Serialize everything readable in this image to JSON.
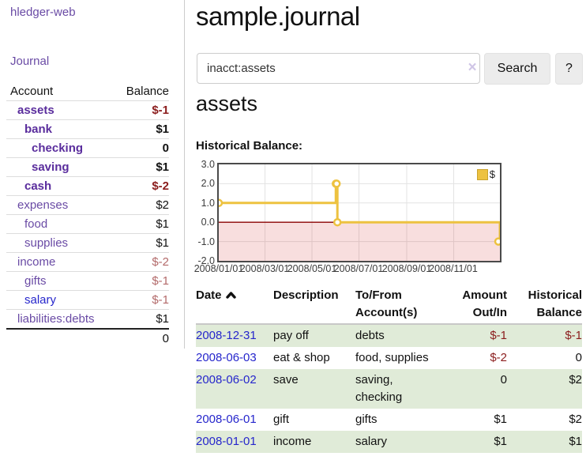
{
  "app": {
    "brand": "hledger-web"
  },
  "sidebar": {
    "journal_label": "Journal",
    "accounts": {
      "headers": {
        "account": "Account",
        "balance": "Balance"
      },
      "rows": [
        {
          "name": "assets",
          "balance": "$-1"
        },
        {
          "name": "bank",
          "balance": "$1"
        },
        {
          "name": "checking",
          "balance": "0"
        },
        {
          "name": "saving",
          "balance": "$1"
        },
        {
          "name": "cash",
          "balance": "$-2"
        },
        {
          "name": "expenses",
          "balance": "$2"
        },
        {
          "name": "food",
          "balance": "$1"
        },
        {
          "name": "supplies",
          "balance": "$1"
        },
        {
          "name": "income",
          "balance": "$-2"
        },
        {
          "name": "gifts",
          "balance": "$-1"
        },
        {
          "name": "salary",
          "balance": "$-1"
        },
        {
          "name": "liabilities:debts",
          "balance": "$1"
        }
      ],
      "total": "0"
    }
  },
  "main": {
    "title": "sample.journal",
    "search": {
      "value": "inacct:assets",
      "clear_icon": "×",
      "button_label": "Search",
      "help_label": "?"
    },
    "account_heading": "assets",
    "chart_label": "Historical Balance:"
  },
  "chart_data": {
    "type": "line",
    "title": "Historical Balance:",
    "step": true,
    "series": [
      {
        "name": "$",
        "points": [
          [
            "2008-01-01",
            1
          ],
          [
            "2008-06-01",
            2
          ],
          [
            "2008-06-02",
            2
          ],
          [
            "2008-06-03",
            0
          ],
          [
            "2008-12-31",
            -1
          ]
        ]
      }
    ],
    "xrange": [
      "2008-01-01",
      "2008-12-31"
    ],
    "ylim": [
      -2,
      3
    ],
    "yticks": [
      3,
      2,
      1,
      0,
      -1,
      -2
    ],
    "ytick_labels": [
      "3.0",
      "2.0",
      "1.0",
      "0.0",
      "-1.0",
      "-2.0"
    ],
    "xticks": [
      "2008/01/01",
      "2008/03/01",
      "2008/05/01",
      "2008/07/01",
      "2008/09/01",
      "2008/11/01"
    ],
    "legend": {
      "position": "top-right",
      "label": "$",
      "color": "#EDC240"
    },
    "grid": true
  },
  "register": {
    "headers": {
      "date": "Date",
      "description": "Description",
      "account": "To/From Account(s)",
      "amount": "Amount Out/In",
      "balance": "Historical Balance"
    },
    "sort": {
      "column": "date",
      "direction": "ascending"
    },
    "rows": [
      {
        "date": "2008-12-31",
        "description": "pay off",
        "accounts": "debts",
        "amount": "$-1",
        "balance": "$-1"
      },
      {
        "date": "2008-06-03",
        "description": "eat & shop",
        "accounts": "food, supplies",
        "amount": "$-2",
        "balance": "0"
      },
      {
        "date": "2008-06-02",
        "description": "save",
        "accounts": "saving, checking",
        "amount": "0",
        "balance": "$2"
      },
      {
        "date": "2008-06-01",
        "description": "gift",
        "accounts": "gifts",
        "amount": "$1",
        "balance": "$2"
      },
      {
        "date": "2008-01-01",
        "description": "income",
        "accounts": "salary",
        "amount": "$1",
        "balance": "$1"
      }
    ]
  },
  "colors": {
    "link_purple": "#6a4ba5",
    "link_purple_bold": "#5a2d9d",
    "link_blue": "#2626cc",
    "negative_strong": "#8b1d1d",
    "negative_soft": "#b36a6a",
    "row_stripe_green": "#e0ebd8",
    "series_gold": "#EDC240",
    "chart_negative_fill": "#f8d6d6",
    "chart_zero_line": "#8b0000"
  },
  "icons": {
    "clear": "x-clear-icon",
    "sort": "chevron-up-icon",
    "legend_swatch": "gold-square-swatch"
  }
}
